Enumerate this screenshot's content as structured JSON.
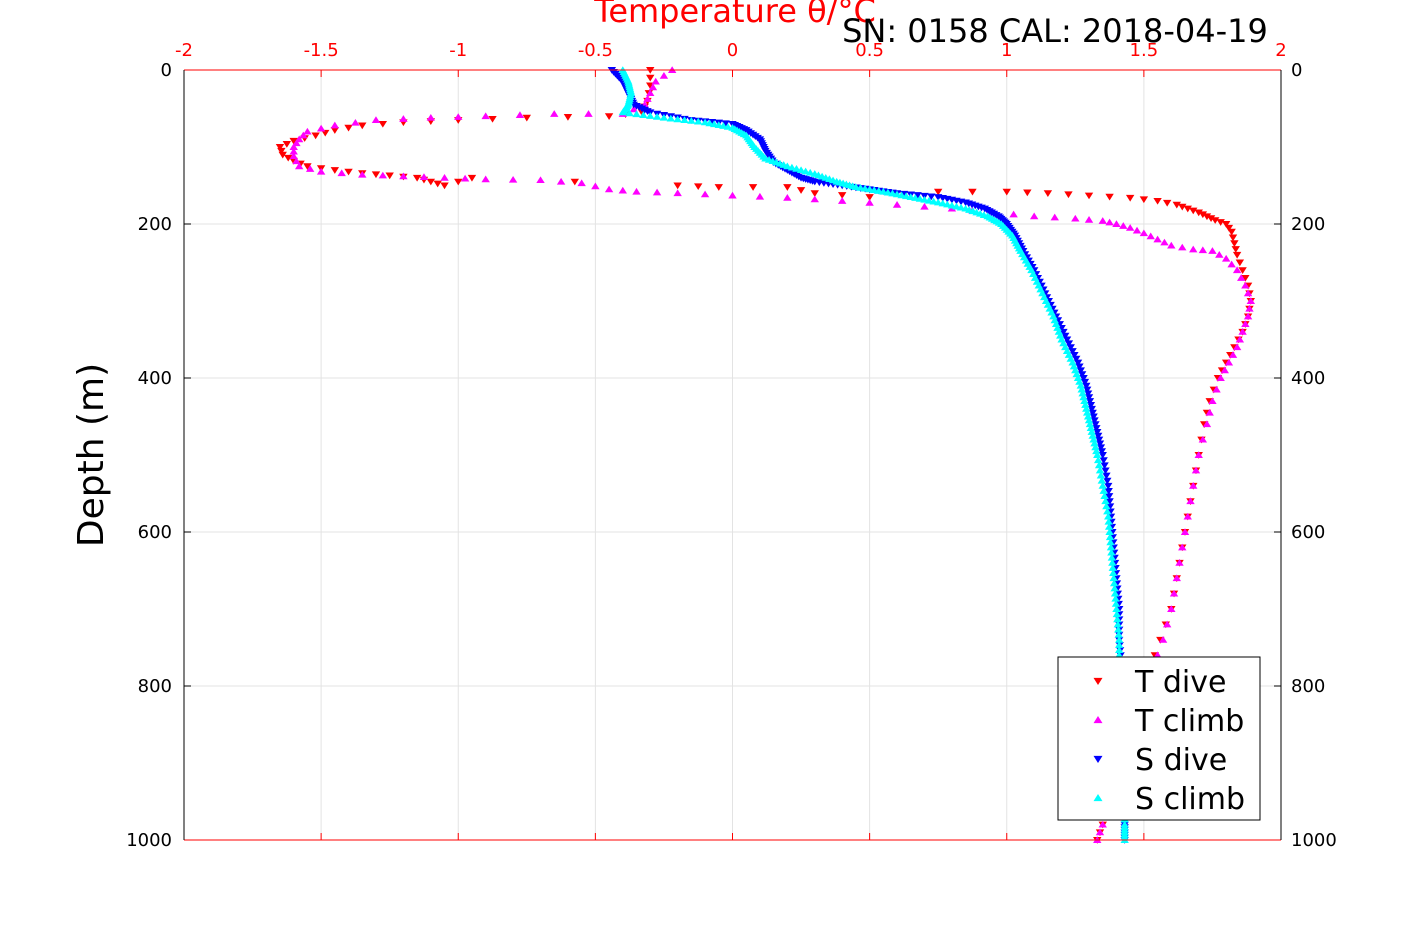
{
  "chart_data": {
    "type": "scatter",
    "title": "SN: 0158  CAL: 2018-04-19",
    "top_axis_label": "Temperature θ/°C",
    "ylabel": "Depth (m)",
    "xlim": [
      -2,
      2
    ],
    "ylim": [
      0,
      1000
    ],
    "y_inverted": true,
    "grid": true,
    "legend_position": "bottom-right",
    "x_ticks": [
      "-2",
      "-1.5",
      "-1",
      "-0.5",
      "0",
      "0.5",
      "1",
      "1.5",
      "2"
    ],
    "y_ticks": [
      "0",
      "200",
      "400",
      "600",
      "800",
      "1000"
    ],
    "series": [
      {
        "name": "T dive",
        "color": "#ff0000",
        "marker": "triangle-down",
        "points": [
          [
            -0.3,
            0
          ],
          [
            -0.3,
            20
          ],
          [
            -0.31,
            40
          ],
          [
            -0.33,
            55
          ],
          [
            -0.45,
            60
          ],
          [
            -0.75,
            62
          ],
          [
            -1.0,
            65
          ],
          [
            -1.2,
            68
          ],
          [
            -1.35,
            72
          ],
          [
            -1.45,
            78
          ],
          [
            -1.52,
            85
          ],
          [
            -1.6,
            92
          ],
          [
            -1.65,
            100
          ],
          [
            -1.64,
            110
          ],
          [
            -1.6,
            118
          ],
          [
            -1.55,
            125
          ],
          [
            -1.45,
            130
          ],
          [
            -1.35,
            134
          ],
          [
            -1.25,
            137
          ],
          [
            -1.15,
            140
          ],
          [
            -1.1,
            145
          ],
          [
            -1.05,
            150
          ],
          [
            -0.95,
            140
          ],
          [
            -0.2,
            150
          ],
          [
            -0.05,
            152
          ],
          [
            0.2,
            152
          ],
          [
            0.3,
            160
          ],
          [
            0.5,
            165
          ],
          [
            0.75,
            158
          ],
          [
            1.0,
            158
          ],
          [
            1.15,
            160
          ],
          [
            1.3,
            163
          ],
          [
            1.45,
            166
          ],
          [
            1.55,
            170
          ],
          [
            1.62,
            175
          ],
          [
            1.66,
            180
          ],
          [
            1.7,
            185
          ],
          [
            1.73,
            190
          ],
          [
            1.76,
            195
          ],
          [
            1.8,
            200
          ],
          [
            1.82,
            210
          ],
          [
            1.83,
            225
          ],
          [
            1.84,
            240
          ],
          [
            1.86,
            260
          ],
          [
            1.88,
            280
          ],
          [
            1.89,
            300
          ],
          [
            1.88,
            320
          ],
          [
            1.86,
            340
          ],
          [
            1.83,
            360
          ],
          [
            1.8,
            380
          ],
          [
            1.77,
            400
          ],
          [
            1.74,
            430
          ],
          [
            1.72,
            460
          ],
          [
            1.7,
            500
          ],
          [
            1.68,
            540
          ],
          [
            1.66,
            580
          ],
          [
            1.64,
            620
          ],
          [
            1.62,
            660
          ],
          [
            1.6,
            700
          ],
          [
            1.56,
            740
          ],
          [
            1.52,
            780
          ],
          [
            1.49,
            820
          ],
          [
            1.45,
            860
          ],
          [
            1.42,
            900
          ],
          [
            1.38,
            940
          ],
          [
            1.35,
            980
          ],
          [
            1.33,
            1000
          ]
        ]
      },
      {
        "name": "T climb",
        "color": "#ff00ff",
        "marker": "triangle-up",
        "points": [
          [
            -0.22,
            0
          ],
          [
            -0.28,
            15
          ],
          [
            -0.3,
            30
          ],
          [
            -0.32,
            45
          ],
          [
            -0.4,
            57
          ],
          [
            -0.65,
            57
          ],
          [
            -0.9,
            60
          ],
          [
            -1.1,
            62
          ],
          [
            -1.3,
            65
          ],
          [
            -1.45,
            72
          ],
          [
            -1.55,
            80
          ],
          [
            -1.58,
            90
          ],
          [
            -1.6,
            100
          ],
          [
            -1.6,
            112
          ],
          [
            -1.58,
            125
          ],
          [
            -1.5,
            132
          ],
          [
            -1.35,
            136
          ],
          [
            -1.2,
            138
          ],
          [
            -1.05,
            140
          ],
          [
            -0.9,
            142
          ],
          [
            -0.7,
            143
          ],
          [
            -0.55,
            147
          ],
          [
            -0.45,
            155
          ],
          [
            -0.35,
            158
          ],
          [
            -0.2,
            160
          ],
          [
            0.0,
            163
          ],
          [
            0.2,
            166
          ],
          [
            0.4,
            170
          ],
          [
            0.6,
            175
          ],
          [
            0.8,
            180
          ],
          [
            0.95,
            185
          ],
          [
            1.1,
            190
          ],
          [
            1.25,
            193
          ],
          [
            1.35,
            196
          ],
          [
            1.4,
            200
          ],
          [
            1.45,
            205
          ],
          [
            1.5,
            212
          ],
          [
            1.55,
            220
          ],
          [
            1.6,
            228
          ],
          [
            1.68,
            233
          ],
          [
            1.75,
            235
          ],
          [
            1.8,
            245
          ],
          [
            1.84,
            260
          ],
          [
            1.87,
            280
          ],
          [
            1.89,
            300
          ],
          [
            1.88,
            320
          ],
          [
            1.86,
            340
          ],
          [
            1.84,
            360
          ],
          [
            1.81,
            380
          ],
          [
            1.78,
            400
          ],
          [
            1.75,
            430
          ],
          [
            1.73,
            460
          ],
          [
            1.7,
            500
          ],
          [
            1.68,
            540
          ],
          [
            1.66,
            580
          ],
          [
            1.64,
            620
          ],
          [
            1.62,
            660
          ],
          [
            1.6,
            700
          ],
          [
            1.57,
            740
          ],
          [
            1.53,
            780
          ],
          [
            1.49,
            820
          ],
          [
            1.46,
            860
          ],
          [
            1.42,
            900
          ],
          [
            1.38,
            940
          ],
          [
            1.35,
            980
          ],
          [
            1.33,
            1000
          ]
        ]
      },
      {
        "name": "S dive",
        "color": "#0000ff",
        "marker": "triangle-down",
        "points": [
          [
            -0.44,
            0
          ],
          [
            -0.4,
            15
          ],
          [
            -0.38,
            30
          ],
          [
            -0.36,
            45
          ],
          [
            -0.3,
            55
          ],
          [
            -0.15,
            65
          ],
          [
            0.0,
            70
          ],
          [
            0.05,
            78
          ],
          [
            0.1,
            90
          ],
          [
            0.12,
            105
          ],
          [
            0.15,
            120
          ],
          [
            0.2,
            130
          ],
          [
            0.25,
            140
          ],
          [
            0.3,
            145
          ],
          [
            0.4,
            150
          ],
          [
            0.5,
            155
          ],
          [
            0.6,
            160
          ],
          [
            0.75,
            165
          ],
          [
            0.85,
            172
          ],
          [
            0.92,
            180
          ],
          [
            0.97,
            190
          ],
          [
            1.0,
            200
          ],
          [
            1.03,
            215
          ],
          [
            1.06,
            235
          ],
          [
            1.1,
            260
          ],
          [
            1.14,
            290
          ],
          [
            1.18,
            320
          ],
          [
            1.22,
            350
          ],
          [
            1.26,
            380
          ],
          [
            1.29,
            410
          ],
          [
            1.31,
            440
          ],
          [
            1.33,
            470
          ],
          [
            1.35,
            500
          ],
          [
            1.37,
            540
          ],
          [
            1.38,
            580
          ],
          [
            1.39,
            620
          ],
          [
            1.4,
            660
          ],
          [
            1.41,
            700
          ],
          [
            1.41,
            740
          ],
          [
            1.42,
            780
          ],
          [
            1.42,
            820
          ],
          [
            1.42,
            860
          ],
          [
            1.43,
            900
          ],
          [
            1.43,
            940
          ],
          [
            1.43,
            980
          ],
          [
            1.43,
            1000
          ]
        ]
      },
      {
        "name": "S climb",
        "color": "#00ffff",
        "marker": "triangle-up",
        "points": [
          [
            -0.4,
            0
          ],
          [
            -0.38,
            15
          ],
          [
            -0.37,
            30
          ],
          [
            -0.38,
            45
          ],
          [
            -0.4,
            55
          ],
          [
            -0.25,
            62
          ],
          [
            -0.1,
            68
          ],
          [
            0.0,
            75
          ],
          [
            0.05,
            85
          ],
          [
            0.08,
            100
          ],
          [
            0.12,
            115
          ],
          [
            0.2,
            125
          ],
          [
            0.3,
            135
          ],
          [
            0.38,
            145
          ],
          [
            0.45,
            152
          ],
          [
            0.55,
            158
          ],
          [
            0.65,
            165
          ],
          [
            0.75,
            172
          ],
          [
            0.85,
            180
          ],
          [
            0.93,
            190
          ],
          [
            0.98,
            200
          ],
          [
            1.02,
            215
          ],
          [
            1.05,
            235
          ],
          [
            1.09,
            260
          ],
          [
            1.13,
            290
          ],
          [
            1.17,
            320
          ],
          [
            1.2,
            350
          ],
          [
            1.24,
            380
          ],
          [
            1.27,
            410
          ],
          [
            1.29,
            440
          ],
          [
            1.31,
            470
          ],
          [
            1.33,
            500
          ],
          [
            1.35,
            540
          ],
          [
            1.37,
            580
          ],
          [
            1.38,
            620
          ],
          [
            1.39,
            660
          ],
          [
            1.4,
            700
          ],
          [
            1.41,
            740
          ],
          [
            1.41,
            780
          ],
          [
            1.42,
            820
          ],
          [
            1.42,
            860
          ],
          [
            1.43,
            900
          ],
          [
            1.43,
            940
          ],
          [
            1.43,
            980
          ],
          [
            1.43,
            1000
          ]
        ]
      }
    ]
  }
}
